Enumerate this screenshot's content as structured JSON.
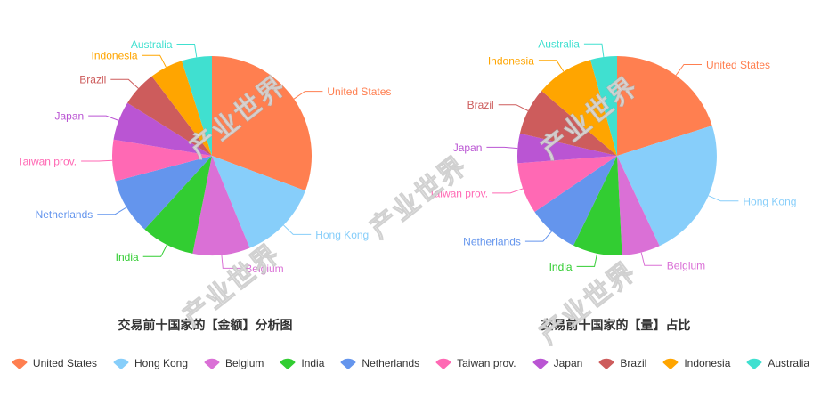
{
  "watermark": {
    "text": "产业世界"
  },
  "colors": [
    "#FF7F50",
    "#87CEFA",
    "#DA70D6",
    "#32CD32",
    "#6495ED",
    "#FF69B4",
    "#BA55D3",
    "#CD5C5C",
    "#FFA500",
    "#40E0D0"
  ],
  "legend": {
    "labels": [
      "United States",
      "Hong Kong",
      "Belgium",
      "India",
      "Netherlands",
      "Taiwan prov.",
      "Japan",
      "Brazil",
      "Indonesia",
      "Australia"
    ]
  },
  "chart_data": [
    {
      "type": "pie",
      "title": "交易前十国家的【金额】分析图",
      "categories": [
        "United States",
        "Hong Kong",
        "Belgium",
        "India",
        "Netherlands",
        "Taiwan prov.",
        "Japan",
        "Brazil",
        "Indonesia",
        "Australia"
      ],
      "values": [
        30.7,
        13.1,
        9.3,
        8.7,
        9.1,
        6.7,
        6.3,
        5.8,
        5.4,
        4.9
      ],
      "unit": "percent",
      "start_angle_deg": 0,
      "direction": "clockwise",
      "labels": "outside",
      "legend_position": "bottom"
    },
    {
      "type": "pie",
      "title": "交易前十国家的【量】占比",
      "categories": [
        "United States",
        "Hong Kong",
        "Belgium",
        "India",
        "Netherlands",
        "Taiwan prov.",
        "Japan",
        "Brazil",
        "Indonesia",
        "Australia"
      ],
      "values": [
        20.1,
        22.9,
        6.2,
        8.0,
        8.3,
        8.3,
        4.8,
        7.7,
        9.4,
        4.3
      ],
      "unit": "percent",
      "start_angle_deg": 0,
      "direction": "clockwise",
      "labels": "outside",
      "legend_position": "bottom"
    }
  ]
}
